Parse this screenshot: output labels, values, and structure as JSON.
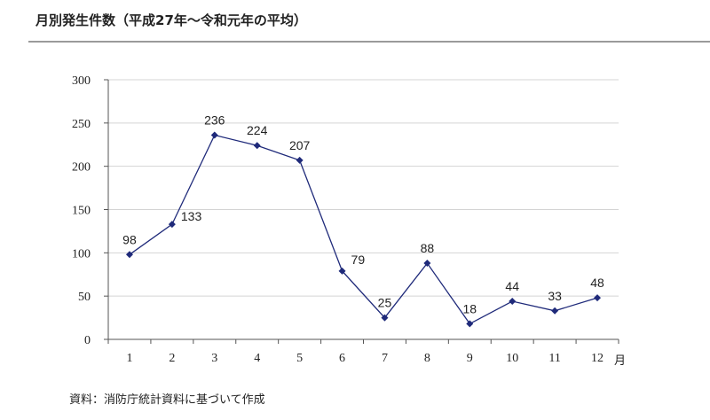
{
  "page": {
    "title": "月別発生件数（平成27年〜令和元年の平均）",
    "source": "資料：消防庁統計資料に基づいて作成"
  },
  "chart_data": {
    "type": "line",
    "title": "",
    "xlabel": "",
    "ylabel": "",
    "x_unit": "月",
    "categories": [
      "1",
      "2",
      "3",
      "4",
      "5",
      "6",
      "7",
      "8",
      "9",
      "10",
      "11",
      "12"
    ],
    "series": [
      {
        "values": [
          98,
          133,
          236,
          224,
          207,
          79,
          25,
          88,
          18,
          44,
          33,
          48
        ]
      }
    ],
    "ylim": [
      0,
      300
    ],
    "yticks": [
      0,
      50,
      100,
      150,
      200,
      250,
      300
    ],
    "grid": true,
    "legend": "none",
    "line_color": "#1f2a7a",
    "marker": "diamond",
    "grid_color": "#d4d4d4"
  }
}
